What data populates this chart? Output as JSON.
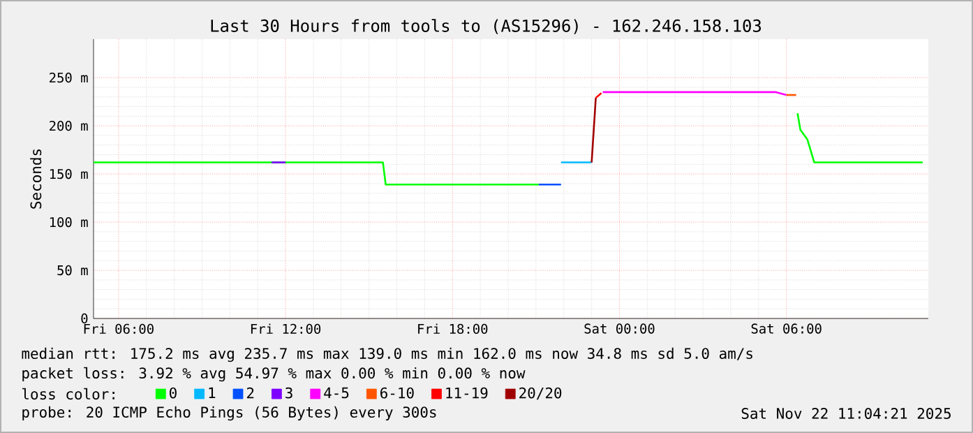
{
  "chart_data": {
    "type": "line",
    "title": "Last 30 Hours from tools to (AS15296) - 162.246.158.103",
    "ylabel": "Seconds",
    "legend_title": "loss color:",
    "xlim": [
      "2025-11-21T05:06",
      "2025-11-22T11:06"
    ],
    "xticks": [
      {
        "value": "2025-11-21T06:00",
        "label": "Fri 06:00"
      },
      {
        "value": "2025-11-21T12:00",
        "label": "Fri 12:00"
      },
      {
        "value": "2025-11-21T18:00",
        "label": "Fri 18:00"
      },
      {
        "value": "2025-11-22T00:00",
        "label": "Sat 00:00"
      },
      {
        "value": "2025-11-22T06:00",
        "label": "Sat 06:00"
      }
    ],
    "ylim": [
      0,
      290
    ],
    "yticks": [
      0,
      {
        "value": 50,
        "label": "50 m"
      },
      {
        "value": 100,
        "label": "100 m"
      },
      {
        "value": 150,
        "label": "150 m"
      },
      {
        "value": 200,
        "label": "200 m"
      },
      {
        "value": 250,
        "label": "250 m"
      }
    ],
    "grid": true,
    "legend": "bottom",
    "series": [
      {
        "name": "0",
        "color": "#00ff00",
        "x": [
          "2025-11-21T05:06",
          "2025-11-21T15:30",
          "2025-11-21T15:36",
          "2025-11-21T21:06",
          "2025-11-21T22:00",
          "2025-11-22T06:24",
          "2025-11-22T06:30",
          "2025-11-22T06:45",
          "2025-11-22T07:00",
          "2025-11-22T10:54"
        ],
        "values": [
          162,
          162,
          139,
          139,
          null,
          213,
          196,
          186,
          162,
          162
        ]
      },
      {
        "name": "1",
        "color": "#00b8ff",
        "x": [
          "2025-11-21T21:54",
          "2025-11-21T23:00"
        ],
        "values": [
          162,
          162
        ]
      },
      {
        "name": "2",
        "color": "#0050ff",
        "x": [
          "2025-11-21T21:06",
          "2025-11-21T21:54"
        ],
        "values": [
          139,
          139
        ]
      },
      {
        "name": "3",
        "color": "#7e00ff",
        "x": [
          "2025-11-21T11:30",
          "2025-11-21T12:00"
        ],
        "values": [
          162,
          162
        ]
      },
      {
        "name": "4-5",
        "color": "#ff00fe",
        "x": [
          "2025-11-21T23:24",
          "2025-11-22T05:36",
          "2025-11-22T06:00"
        ],
        "values": [
          235,
          235,
          232
        ]
      },
      {
        "name": "6-10",
        "color": "#ff5500",
        "x": [
          "2025-11-22T06:00",
          "2025-11-22T06:21"
        ],
        "values": [
          232,
          232
        ]
      },
      {
        "name": "11-19",
        "color": "#ff0000",
        "x": [
          "2025-11-21T23:09",
          "2025-11-21T23:21"
        ],
        "values": [
          229,
          234
        ]
      },
      {
        "name": "20/20",
        "color": "#a10000",
        "x": [
          "2025-11-21T23:00",
          "2025-11-21T23:09"
        ],
        "values": [
          162,
          229
        ]
      }
    ],
    "annotations": [
      "median rtt:  175.2 ms avg  235.7 ms max  139.0 ms min  162.0 ms now  34.8 ms sd  5.0   am/s",
      "packet loss: 3.92 % avg  54.97 % max  0.00 % min  0.00 % now",
      "probe:          20 ICMP Echo Pings (56 Bytes) every 300s",
      "Sat Nov 22 11:04:21 2025"
    ]
  }
}
